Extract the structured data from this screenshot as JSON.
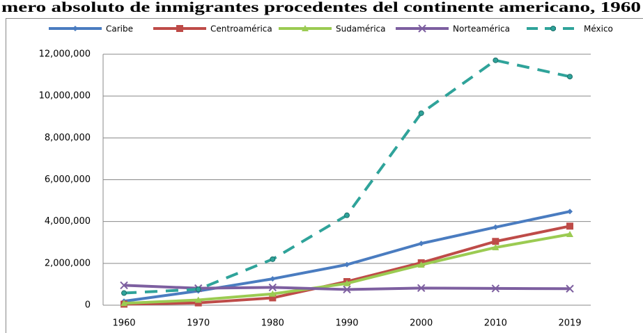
{
  "chart_data": {
    "type": "line",
    "title": "mero absoluto de inmigrantes procedentes del continente americano, 1960",
    "categories": [
      "1960",
      "1970",
      "1980",
      "1990",
      "2000",
      "2010",
      "2019"
    ],
    "series": [
      {
        "name": "Caribe",
        "color": "#4a7cc0",
        "marker": "diamond",
        "dash": false,
        "values": [
          190000,
          680000,
          1260000,
          1940000,
          2950000,
          3730000,
          4480000
        ]
      },
      {
        "name": "Centroamérica",
        "color": "#be4b48",
        "marker": "square",
        "dash": false,
        "values": [
          50000,
          110000,
          350000,
          1130000,
          2030000,
          3050000,
          3780000
        ]
      },
      {
        "name": "Sudamérica",
        "color": "#9bcb52",
        "marker": "triangle",
        "dash": false,
        "values": [
          90000,
          250000,
          540000,
          1040000,
          1930000,
          2760000,
          3390000
        ]
      },
      {
        "name": "Norteamérica",
        "color": "#7d5fa0",
        "marker": "x",
        "dash": false,
        "values": [
          950000,
          810000,
          850000,
          750000,
          820000,
          800000,
          790000
        ]
      },
      {
        "name": "México",
        "color": "#2fa39a",
        "marker": "circle",
        "dash": true,
        "values": [
          580000,
          760000,
          2200000,
          4300000,
          9180000,
          11710000,
          10930000
        ]
      }
    ],
    "ylim": [
      0,
      12000000
    ],
    "yticks": [
      0,
      {
        "value": 2000000,
        "label": "2,000,000"
      },
      {
        "value": 4000000,
        "label": "4,000,000"
      },
      {
        "value": 6000000,
        "label": "6,000,000"
      },
      {
        "value": 8000000,
        "label": "8,000,000"
      },
      {
        "value": 10000000,
        "label": "10,000,000"
      },
      {
        "value": 12000000,
        "label": "12,000,000"
      }
    ],
    "grid": true,
    "legend": "top"
  }
}
